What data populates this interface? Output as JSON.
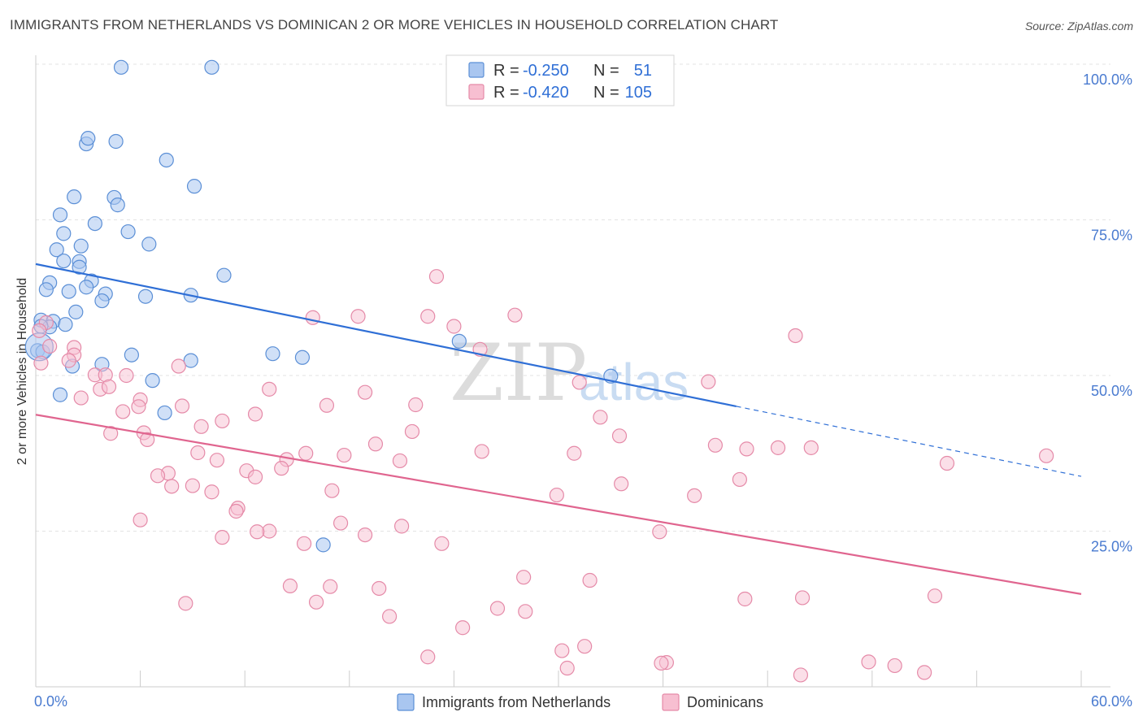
{
  "header": {
    "title": "IMMIGRANTS FROM NETHERLANDS VS DOMINICAN 2 OR MORE VEHICLES IN HOUSEHOLD CORRELATION CHART",
    "source": "Source: ZipAtlas.com"
  },
  "legend": {
    "rows": [
      {
        "r_label": "R =",
        "r_value": "-0.250",
        "n_label": "N =",
        "n_value": "51"
      },
      {
        "r_label": "R =",
        "r_value": "-0.420",
        "n_label": "N =",
        "n_value": "105"
      }
    ]
  },
  "bottom_legend": {
    "items": [
      {
        "label": "Immigrants from Netherlands"
      },
      {
        "label": "Dominicans"
      }
    ]
  },
  "watermark": {
    "zip": "ZIP",
    "atlas": "atlas"
  },
  "colors": {
    "netherlands_fill": "#a9c6f0",
    "netherlands_stroke": "#5b8fd6",
    "netherlands_line": "#2f6fd6",
    "dominican_fill": "#f7bfd1",
    "dominican_stroke": "#e58aa8",
    "dominican_line": "#e0658f",
    "grid": "#e3e3e3",
    "tick_label": "#4a7bd0"
  },
  "chart_data": {
    "type": "scatter",
    "title": "IMMIGRANTS FROM NETHERLANDS VS DOMINICAN 2 OR MORE VEHICLES IN HOUSEHOLD CORRELATION CHART",
    "xlabel": "",
    "ylabel": "2 or more Vehicles in Household",
    "xlim": [
      0,
      60
    ],
    "ylim": [
      0,
      100
    ],
    "x_tick_labels": [
      "0.0%",
      "60.0%"
    ],
    "y_ticks": [
      25,
      50,
      75,
      100
    ],
    "y_tick_labels": [
      "25.0%",
      "50.0%",
      "75.0%",
      "100.0%"
    ],
    "grid": true,
    "legend_position": "top-center",
    "series": [
      {
        "name": "Immigrants from Netherlands",
        "r": -0.25,
        "n": 51,
        "trend": {
          "x0": 0,
          "y0": 67.9,
          "x1": 60,
          "y1": 33.8,
          "solid_until_x": 40.2
        },
        "points": [
          [
            4.9,
            99.5
          ],
          [
            10.1,
            99.5
          ],
          [
            2.9,
            87.2
          ],
          [
            3.0,
            88.1
          ],
          [
            4.6,
            87.6
          ],
          [
            7.5,
            84.6
          ],
          [
            9.1,
            80.4
          ],
          [
            2.2,
            78.7
          ],
          [
            4.5,
            78.6
          ],
          [
            4.7,
            77.4
          ],
          [
            1.4,
            75.8
          ],
          [
            3.4,
            74.4
          ],
          [
            5.3,
            73.1
          ],
          [
            1.6,
            72.8
          ],
          [
            6.5,
            71.1
          ],
          [
            1.2,
            70.2
          ],
          [
            2.6,
            70.8
          ],
          [
            1.6,
            68.4
          ],
          [
            2.5,
            68.3
          ],
          [
            2.5,
            67.4
          ],
          [
            10.8,
            66.1
          ],
          [
            0.8,
            64.9
          ],
          [
            3.2,
            65.2
          ],
          [
            2.9,
            64.2
          ],
          [
            0.6,
            63.8
          ],
          [
            1.9,
            63.5
          ],
          [
            4.0,
            63.1
          ],
          [
            6.3,
            62.7
          ],
          [
            8.9,
            62.9
          ],
          [
            3.8,
            62.0
          ],
          [
            2.3,
            60.2
          ],
          [
            0.3,
            58.9
          ],
          [
            1.0,
            58.7
          ],
          [
            0.8,
            57.8
          ],
          [
            0.3,
            57.9
          ],
          [
            1.7,
            58.2
          ],
          [
            24.3,
            55.5
          ],
          [
            0.1,
            54.0
          ],
          [
            0.4,
            53.8
          ],
          [
            5.5,
            53.3
          ],
          [
            13.6,
            53.5
          ],
          [
            15.3,
            52.9
          ],
          [
            8.9,
            52.4
          ],
          [
            3.8,
            51.8
          ],
          [
            2.1,
            51.5
          ],
          [
            33.0,
            49.9
          ],
          [
            6.7,
            49.2
          ],
          [
            1.4,
            46.9
          ],
          [
            7.4,
            44.0
          ],
          [
            16.5,
            22.8
          ],
          [
            0.2,
            54.6
          ]
        ]
      },
      {
        "name": "Dominicans",
        "r": -0.42,
        "n": 105,
        "trend": {
          "x0": 0,
          "y0": 43.7,
          "x1": 60,
          "y1": 14.9
        },
        "points": [
          [
            23.0,
            65.9
          ],
          [
            15.9,
            59.3
          ],
          [
            18.5,
            59.5
          ],
          [
            22.5,
            59.5
          ],
          [
            27.5,
            59.7
          ],
          [
            24.0,
            57.9
          ],
          [
            43.6,
            56.4
          ],
          [
            0.6,
            58.5
          ],
          [
            0.2,
            57.2
          ],
          [
            0.8,
            54.7
          ],
          [
            2.2,
            54.5
          ],
          [
            25.5,
            54.2
          ],
          [
            2.2,
            53.3
          ],
          [
            1.9,
            52.4
          ],
          [
            0.3,
            52.0
          ],
          [
            8.2,
            51.5
          ],
          [
            3.4,
            50.1
          ],
          [
            5.2,
            50.0
          ],
          [
            4.0,
            50.1
          ],
          [
            38.6,
            49.0
          ],
          [
            31.2,
            48.9
          ],
          [
            13.4,
            47.8
          ],
          [
            18.9,
            47.3
          ],
          [
            3.7,
            47.8
          ],
          [
            4.2,
            48.2
          ],
          [
            6.0,
            46.1
          ],
          [
            2.6,
            46.4
          ],
          [
            5.9,
            45.0
          ],
          [
            8.4,
            45.1
          ],
          [
            16.7,
            45.2
          ],
          [
            21.8,
            45.3
          ],
          [
            12.6,
            43.8
          ],
          [
            5.0,
            44.2
          ],
          [
            32.4,
            43.3
          ],
          [
            10.7,
            42.7
          ],
          [
            9.5,
            41.8
          ],
          [
            21.6,
            41.0
          ],
          [
            6.2,
            40.8
          ],
          [
            4.3,
            40.7
          ],
          [
            33.5,
            40.3
          ],
          [
            6.4,
            39.7
          ],
          [
            19.5,
            39.0
          ],
          [
            39.0,
            38.8
          ],
          [
            40.8,
            38.2
          ],
          [
            42.6,
            38.4
          ],
          [
            44.5,
            38.4
          ],
          [
            25.6,
            37.8
          ],
          [
            30.9,
            37.5
          ],
          [
            9.3,
            37.6
          ],
          [
            15.5,
            37.5
          ],
          [
            17.7,
            37.2
          ],
          [
            14.4,
            36.5
          ],
          [
            20.9,
            36.3
          ],
          [
            10.4,
            36.4
          ],
          [
            52.3,
            35.9
          ],
          [
            58.0,
            37.1
          ],
          [
            14.1,
            35.1
          ],
          [
            12.1,
            34.7
          ],
          [
            7.6,
            34.3
          ],
          [
            12.6,
            33.7
          ],
          [
            7.0,
            33.9
          ],
          [
            40.4,
            33.3
          ],
          [
            33.6,
            32.6
          ],
          [
            7.8,
            32.2
          ],
          [
            9.0,
            32.3
          ],
          [
            10.1,
            31.3
          ],
          [
            17.0,
            31.5
          ],
          [
            29.9,
            30.8
          ],
          [
            37.8,
            30.7
          ],
          [
            11.6,
            28.7
          ],
          [
            11.5,
            28.2
          ],
          [
            6.0,
            26.8
          ],
          [
            17.5,
            26.3
          ],
          [
            21.0,
            25.8
          ],
          [
            13.4,
            25.0
          ],
          [
            12.7,
            24.9
          ],
          [
            35.8,
            24.9
          ],
          [
            18.9,
            24.4
          ],
          [
            10.7,
            24.0
          ],
          [
            15.4,
            23.0
          ],
          [
            23.3,
            23.0
          ],
          [
            28.0,
            17.6
          ],
          [
            31.8,
            17.1
          ],
          [
            14.6,
            16.2
          ],
          [
            16.9,
            16.1
          ],
          [
            19.7,
            15.8
          ],
          [
            40.7,
            14.1
          ],
          [
            44.0,
            14.3
          ],
          [
            51.6,
            14.6
          ],
          [
            8.6,
            13.4
          ],
          [
            16.1,
            13.6
          ],
          [
            26.5,
            12.6
          ],
          [
            28.1,
            12.1
          ],
          [
            20.3,
            11.3
          ],
          [
            24.5,
            9.5
          ],
          [
            30.2,
            5.8
          ],
          [
            31.5,
            6.5
          ],
          [
            22.5,
            4.8
          ],
          [
            36.2,
            3.9
          ],
          [
            35.9,
            3.8
          ],
          [
            47.8,
            4.0
          ],
          [
            49.3,
            3.4
          ],
          [
            30.5,
            3.0
          ],
          [
            51.0,
            2.3
          ],
          [
            43.9,
            1.9
          ]
        ]
      }
    ]
  }
}
